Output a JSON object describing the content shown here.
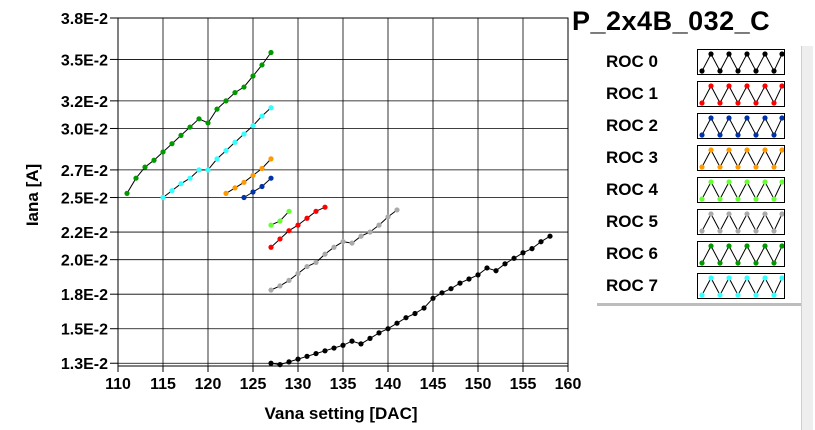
{
  "chart_data": {
    "type": "scatter",
    "title": "P_2x4B_032_C",
    "xlabel": "Vana setting [DAC]",
    "ylabel": "Iana [A]",
    "xlim": [
      110,
      160
    ],
    "ylim": [
      0.0128,
      0.038
    ],
    "x_ticks": [
      110,
      115,
      120,
      125,
      130,
      135,
      140,
      145,
      150,
      155,
      160
    ],
    "x_tick_labels": [
      "110",
      "115",
      "120",
      "125",
      "130",
      "135",
      "140",
      "145",
      "150",
      "155",
      "160"
    ],
    "y_ticks": [
      0.013,
      0.0155,
      0.018,
      0.0205,
      0.0225,
      0.025,
      0.027,
      0.03,
      0.032,
      0.035,
      0.038
    ],
    "y_tick_labels": [
      "1.3E-2",
      "1.5E-2",
      "1.8E-2",
      "2.0E-2",
      "2.2E-2",
      "2.5E-2",
      "2.7E-2",
      "3.0E-2",
      "3.2E-2",
      "3.5E-2",
      "3.8E-2"
    ],
    "grid": true,
    "legend_position": "right",
    "series": [
      {
        "name": "ROC 0",
        "color": "#000000",
        "x": [
          127,
          128,
          129,
          130,
          131,
          132,
          133,
          134,
          135,
          136,
          137,
          138,
          139,
          140,
          141,
          142,
          143,
          144,
          145,
          146,
          147,
          148,
          149,
          150,
          151,
          152,
          153,
          154,
          155,
          156,
          157,
          158
        ],
        "y": [
          0.013,
          0.0129,
          0.0131,
          0.0133,
          0.0135,
          0.0137,
          0.0139,
          0.0141,
          0.0143,
          0.0146,
          0.0144,
          0.0148,
          0.0152,
          0.0155,
          0.0159,
          0.0163,
          0.0166,
          0.017,
          0.0177,
          0.0181,
          0.0184,
          0.0188,
          0.0191,
          0.0194,
          0.0199,
          0.0197,
          0.0202,
          0.0206,
          0.021,
          0.0213,
          0.0218,
          0.0222
        ]
      },
      {
        "name": "ROC 1",
        "color": "#ff0000",
        "x": [
          127,
          128,
          129,
          130,
          131,
          132,
          133
        ],
        "y": [
          0.0214,
          0.022,
          0.0226,
          0.023,
          0.0235,
          0.024,
          0.0243
        ]
      },
      {
        "name": "ROC 2",
        "color": "#0033aa",
        "x": [
          124,
          125,
          126,
          127
        ],
        "y": [
          0.025,
          0.0254,
          0.0258,
          0.0264
        ]
      },
      {
        "name": "ROC 3",
        "color": "#ff9900",
        "x": [
          122,
          123,
          124,
          125,
          126,
          127
        ],
        "y": [
          0.0253,
          0.0257,
          0.0261,
          0.0266,
          0.0271,
          0.0278
        ]
      },
      {
        "name": "ROC 4",
        "color": "#66ff33",
        "x": [
          127,
          128,
          129
        ],
        "y": [
          0.023,
          0.0233,
          0.024
        ]
      },
      {
        "name": "ROC 5",
        "color": "#aaaaaa",
        "x": [
          127,
          128,
          129,
          130,
          131,
          132,
          133,
          134,
          135,
          136,
          137,
          138,
          139,
          140,
          141
        ],
        "y": [
          0.0183,
          0.0186,
          0.019,
          0.0195,
          0.02,
          0.0203,
          0.0209,
          0.0214,
          0.0218,
          0.0217,
          0.0222,
          0.0225,
          0.023,
          0.0236,
          0.0241
        ]
      },
      {
        "name": "ROC 6",
        "color": "#009900",
        "x": [
          111,
          112,
          113,
          114,
          115,
          116,
          117,
          118,
          119,
          120,
          121,
          122,
          123,
          124,
          125,
          126,
          127
        ],
        "y": [
          0.0253,
          0.0264,
          0.0272,
          0.0277,
          0.0283,
          0.0289,
          0.0295,
          0.0301,
          0.0307,
          0.0304,
          0.0314,
          0.032,
          0.0326,
          0.033,
          0.0338,
          0.0346,
          0.0355
        ]
      },
      {
        "name": "ROC 7",
        "color": "#33ffff",
        "x": [
          115,
          116,
          117,
          118,
          119,
          120,
          121,
          122,
          123,
          124,
          125,
          126,
          127
        ],
        "y": [
          0.025,
          0.0255,
          0.026,
          0.0264,
          0.027,
          0.027,
          0.0278,
          0.0284,
          0.029,
          0.0296,
          0.0302,
          0.0309,
          0.0315
        ]
      }
    ]
  }
}
